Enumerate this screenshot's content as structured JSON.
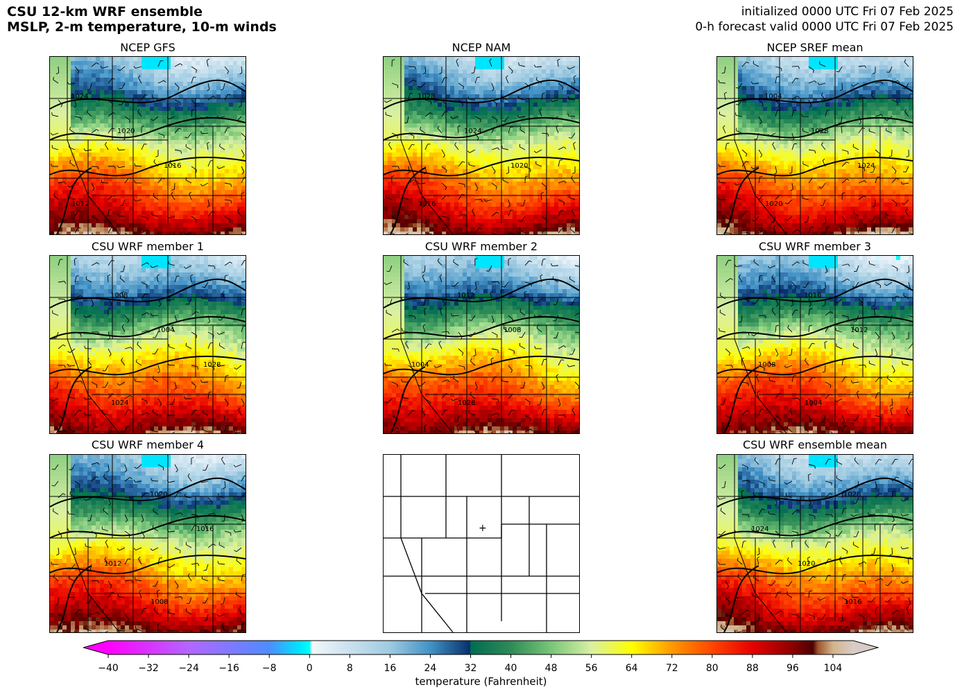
{
  "header": {
    "title_line1": "CSU 12-km WRF ensemble",
    "title_line2": "MSLP, 2-m temperature, 10-m winds",
    "init_line": "initialized 0000 UTC Fri 07 Feb 2025",
    "valid_line": "0-h forecast valid 0000 UTC Fri 07 Feb 2025"
  },
  "panels": [
    {
      "title": "NCEP GFS",
      "kind": "field"
    },
    {
      "title": "NCEP NAM",
      "kind": "field"
    },
    {
      "title": "NCEP SREF mean",
      "kind": "field"
    },
    {
      "title": "CSU WRF member 1",
      "kind": "field"
    },
    {
      "title": "CSU WRF member 2",
      "kind": "field"
    },
    {
      "title": "CSU WRF member 3",
      "kind": "field"
    },
    {
      "title": "CSU WRF member 4",
      "kind": "field"
    },
    {
      "title": "",
      "kind": "blank-map"
    },
    {
      "title": "CSU WRF ensemble mean",
      "kind": "field"
    }
  ],
  "colorbar": {
    "label": "temperature (Fahrenheit)",
    "ticks": [
      "−40",
      "−32",
      "−24",
      "−16",
      "−8",
      "0",
      "8",
      "16",
      "24",
      "32",
      "40",
      "48",
      "56",
      "64",
      "72",
      "80",
      "88",
      "96",
      "104"
    ],
    "min": -40,
    "max": 108,
    "stops": [
      {
        "v": -40,
        "c": "#ff00ff"
      },
      {
        "v": -24,
        "c": "#b366ff"
      },
      {
        "v": -8,
        "c": "#4d8cff"
      },
      {
        "v": -2,
        "c": "#00e5ff"
      },
      {
        "v": 0,
        "c": "#00ffff"
      },
      {
        "v": 0.5,
        "c": "#f2f7fb"
      },
      {
        "v": 16,
        "c": "#9ecae1"
      },
      {
        "v": 24,
        "c": "#4292c6"
      },
      {
        "v": 31.9,
        "c": "#08306b"
      },
      {
        "v": 32,
        "c": "#006d52"
      },
      {
        "v": 40,
        "c": "#2e8b57"
      },
      {
        "v": 48,
        "c": "#78c679"
      },
      {
        "v": 56,
        "c": "#d9f0a3"
      },
      {
        "v": 64,
        "c": "#ffff00"
      },
      {
        "v": 72,
        "c": "#ff9900"
      },
      {
        "v": 80,
        "c": "#ff4500"
      },
      {
        "v": 88,
        "c": "#e60000"
      },
      {
        "v": 96,
        "c": "#8b0000"
      },
      {
        "v": 100,
        "c": "#4d0000"
      },
      {
        "v": 101,
        "c": "#a0522d"
      },
      {
        "v": 104,
        "c": "#d2b48c"
      },
      {
        "v": 108,
        "c": "#d8ccc8"
      }
    ]
  },
  "map_labels": {
    "isobars": [
      "1004",
      "1008",
      "1012",
      "1016",
      "1020",
      "1024",
      "1028"
    ]
  },
  "colors": {
    "outline": "#000000",
    "background": "#ffffff"
  }
}
